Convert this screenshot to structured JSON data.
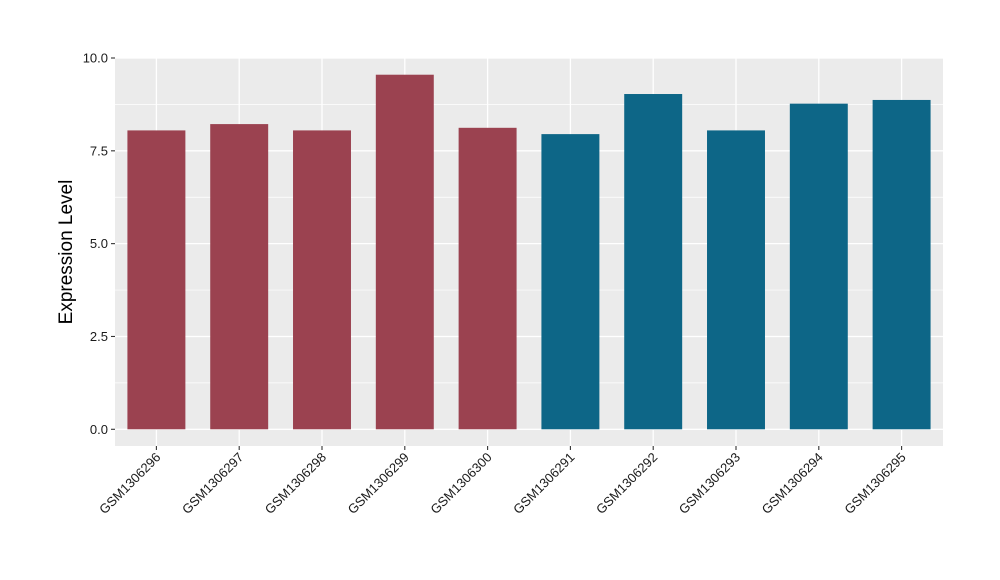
{
  "chart_data": {
    "type": "bar",
    "title": "",
    "xlabel": "",
    "ylabel": "Expression Level",
    "ylim": [
      -0.45,
      10.0
    ],
    "yticks": [
      0.0,
      2.5,
      5.0,
      7.5,
      10.0
    ],
    "ytick_labels": [
      "0.0",
      "2.5",
      "5.0",
      "7.5",
      "10.0"
    ],
    "grid": true,
    "legend": "none",
    "categories": [
      "GSM1306296",
      "GSM1306297",
      "GSM1306298",
      "GSM1306299",
      "GSM1306300",
      "GSM1306291",
      "GSM1306292",
      "GSM1306293",
      "GSM1306294",
      "GSM1306295"
    ],
    "values": [
      8.05,
      8.22,
      8.05,
      9.55,
      8.12,
      7.95,
      9.03,
      8.05,
      8.77,
      8.87
    ],
    "bar_colors": [
      "#9b4250",
      "#9b4250",
      "#9b4250",
      "#9b4250",
      "#9b4250",
      "#0d6687",
      "#0d6687",
      "#0d6687",
      "#0d6687",
      "#0d6687"
    ],
    "panel_background": "#ebebeb",
    "grid_color": "#ffffff"
  }
}
